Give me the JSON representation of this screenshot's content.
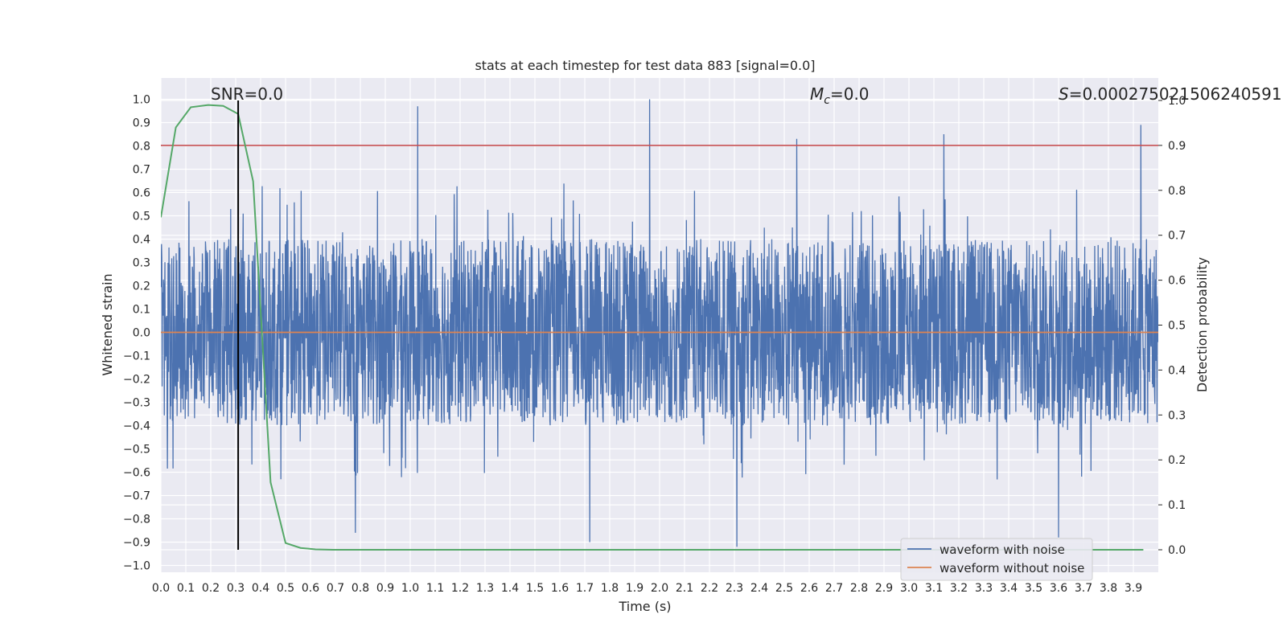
{
  "chart_data": {
    "type": "line",
    "title": "stats at each timestep for test data 883 [signal=0.0]",
    "xlabel": "Time (s)",
    "ylabel_left": "Whitened strain",
    "ylabel_right": "Detection probability",
    "xlim": [
      0.0,
      4.0
    ],
    "ylim_left": [
      -1.05,
      1.1
    ],
    "ylim_right": [
      -0.05,
      1.0
    ],
    "x_ticks": [
      "0.0",
      "0.1",
      "0.2",
      "0.3",
      "0.4",
      "0.5",
      "0.6",
      "0.7",
      "0.8",
      "0.9",
      "1.0",
      "1.1",
      "1.2",
      "1.3",
      "1.4",
      "1.5",
      "1.6",
      "1.7",
      "1.8",
      "1.9",
      "2.0",
      "2.1",
      "2.2",
      "2.3",
      "2.4",
      "2.5",
      "2.6",
      "2.7",
      "2.8",
      "2.9",
      "3.0",
      "3.1",
      "3.2",
      "3.3",
      "3.4",
      "3.5",
      "3.6",
      "3.7",
      "3.8",
      "3.9"
    ],
    "y_ticks_left": [
      "1.0",
      "0.9",
      "0.8",
      "0.7",
      "0.6",
      "0.5",
      "0.4",
      "0.3",
      "0.2",
      "0.1",
      "0.0",
      "−0.1",
      "−0.2",
      "−0.3",
      "−0.4",
      "−0.5",
      "−0.6",
      "−0.7",
      "−0.8",
      "−0.9",
      "−1.0"
    ],
    "y_ticks_right": [
      "0.0",
      "0.1",
      "0.2",
      "0.3",
      "0.4",
      "0.5",
      "0.6",
      "0.7",
      "0.8",
      "0.9",
      "1.0"
    ],
    "grid": true,
    "legend_position": "lower-right",
    "annotations": {
      "snr": "SNR=0.0",
      "mc_symbol": "M",
      "mc_sub": "c",
      "mc_value": "=0.0",
      "s_symbol": "S",
      "s_value": "=0.000275021506240591"
    },
    "threshold_right": 0.9,
    "marker_time": 0.31,
    "series": [
      {
        "name": "waveform with noise",
        "color": "#4c72b0",
        "style": "noise",
        "amplitude_typical": 0.4,
        "peaks": [
          [
            1.03,
            0.97
          ],
          [
            1.96,
            1.0
          ],
          [
            2.55,
            0.83
          ],
          [
            3.14,
            0.85
          ],
          [
            3.93,
            0.89
          ],
          [
            1.72,
            -0.9
          ],
          [
            2.31,
            -0.92
          ],
          [
            3.6,
            -0.88
          ],
          [
            0.78,
            -0.86
          ]
        ]
      },
      {
        "name": "waveform without noise",
        "color": "#dd8452",
        "style": "constant",
        "value": 0.0
      },
      {
        "name": "",
        "color": "#55a868",
        "axis": "right",
        "x": [
          0.0,
          0.06,
          0.12,
          0.19,
          0.25,
          0.31,
          0.37,
          0.44,
          0.5,
          0.56,
          0.62,
          0.69,
          0.75,
          1.0,
          2.0,
          3.0,
          3.94
        ],
        "y": [
          0.74,
          0.94,
          0.985,
          0.99,
          0.988,
          0.97,
          0.82,
          0.15,
          0.015,
          0.004,
          0.001,
          0.0,
          0.0,
          0.0,
          0.0,
          0.0,
          0.0
        ]
      }
    ],
    "threshold_color": "#c44e52",
    "marker_color": "#000000"
  }
}
